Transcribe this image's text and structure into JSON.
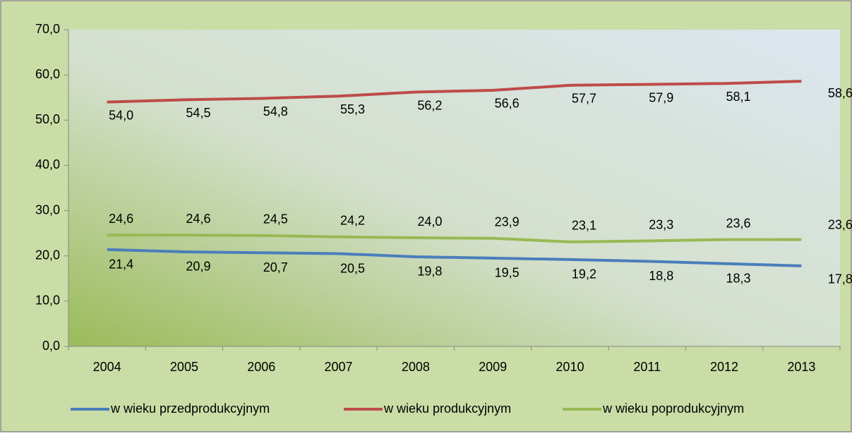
{
  "chart_data": {
    "type": "line",
    "categories": [
      "2004",
      "2005",
      "2006",
      "2007",
      "2008",
      "2009",
      "2010",
      "2011",
      "2012",
      "2013"
    ],
    "series": [
      {
        "name": "w wieku przedprodukcyjnym",
        "color": "#4a7ebb",
        "values": [
          21.4,
          20.9,
          20.7,
          20.5,
          19.8,
          19.5,
          19.2,
          18.8,
          18.3,
          17.8
        ],
        "value_labels": [
          "21,4",
          "20,9",
          "20,7",
          "20,5",
          "19,8",
          "19,5",
          "19,2",
          "18,8",
          "18,3",
          "17,8"
        ]
      },
      {
        "name": "w wieku produkcyjnym",
        "color": "#be4b48",
        "values": [
          54.0,
          54.5,
          54.8,
          55.3,
          56.2,
          56.6,
          57.7,
          57.9,
          58.1,
          58.6
        ],
        "value_labels": [
          "54,0",
          "54,5",
          "54,8",
          "55,3",
          "56,2",
          "56,6",
          "57,7",
          "57,9",
          "58,1",
          "58,6"
        ]
      },
      {
        "name": "w wieku poprodukcyjnym",
        "color": "#98b954",
        "values": [
          24.6,
          24.6,
          24.5,
          24.2,
          24.0,
          23.9,
          23.1,
          23.3,
          23.6,
          23.6
        ],
        "value_labels": [
          "24,6",
          "24,6",
          "24,5",
          "24,2",
          "24,0",
          "23,9",
          "23,1",
          "23,3",
          "23,6",
          "23,6"
        ]
      }
    ],
    "ylim": [
      0,
      70
    ],
    "yticks": [
      {
        "value": 0,
        "label": "0,0"
      },
      {
        "value": 10,
        "label": "10,0"
      },
      {
        "value": 20,
        "label": "20,0"
      },
      {
        "value": 30,
        "label": "30,0"
      },
      {
        "value": 40,
        "label": "40,0"
      },
      {
        "value": 50,
        "label": "50,0"
      },
      {
        "value": 60,
        "label": "60,0"
      },
      {
        "value": 70,
        "label": "70,0"
      }
    ],
    "legend": "bottom"
  }
}
